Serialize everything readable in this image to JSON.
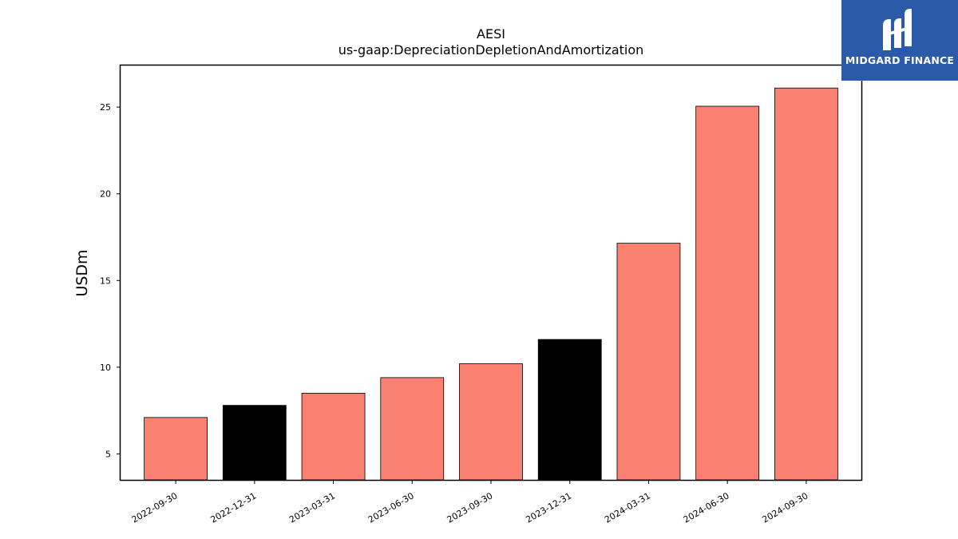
{
  "chart_data": {
    "type": "bar",
    "title": "AESI",
    "subtitle": "us-gaap:DepreciationDepletionAndAmortization",
    "ylabel": "USDm",
    "xlabel": "",
    "categories": [
      "2022-09-30",
      "2022-12-31",
      "2023-03-31",
      "2023-06-30",
      "2023-09-30",
      "2023-12-31",
      "2024-03-31",
      "2024-06-30",
      "2024-09-30"
    ],
    "values": [
      7.1,
      7.8,
      8.5,
      9.4,
      10.2,
      11.6,
      17.15,
      25.05,
      26.1
    ],
    "bar_colors": [
      "#fa8072",
      "#000000",
      "#fa8072",
      "#fa8072",
      "#fa8072",
      "#000000",
      "#fa8072",
      "#fa8072",
      "#fa8072"
    ],
    "ylim": [
      3.5,
      27.4
    ],
    "yticks": [
      5,
      10,
      15,
      20,
      25
    ],
    "grid": false,
    "legend": "none"
  },
  "logo": {
    "text": "MIDGARD FINANCE",
    "background": "#2b5aa8"
  }
}
